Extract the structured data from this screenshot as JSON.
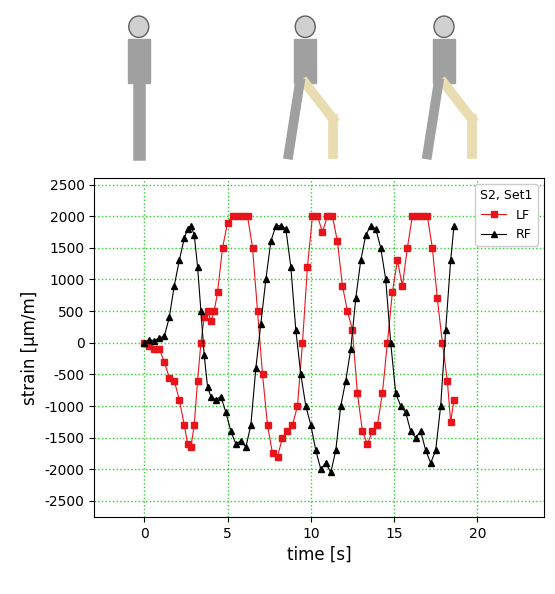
{
  "chart_data": {
    "type": "line",
    "x_label": "time [s]",
    "y_label": "strain [µm/m]",
    "legend_title": "S2, Set1",
    "legend": "upper right",
    "grid": true,
    "xlim": [
      -3,
      24
    ],
    "xticks": [
      0,
      5,
      10,
      15,
      20
    ],
    "ylim": [
      -2750,
      2600
    ],
    "yticks": [
      -2500,
      -2000,
      -1500,
      -1000,
      -500,
      0,
      500,
      1000,
      1500,
      2000,
      2500
    ],
    "series": [
      {
        "name": "LF",
        "color": "#e8141c",
        "marker": "square",
        "line_style": "solid",
        "x": [
          0,
          0.3,
          0.6,
          0.9,
          1.2,
          1.5,
          1.8,
          2.1,
          2.4,
          2.6,
          2.8,
          3.0,
          3.2,
          3.4,
          3.6,
          3.8,
          4.0,
          4.2,
          4.4,
          4.7,
          5.0,
          5.3,
          5.6,
          5.9,
          6.2,
          6.5,
          6.8,
          7.1,
          7.4,
          7.7,
          8.0,
          8.3,
          8.6,
          8.9,
          9.2,
          9.5,
          9.8,
          10.1,
          10.4,
          10.7,
          11.0,
          11.3,
          11.6,
          11.9,
          12.2,
          12.5,
          12.8,
          13.1,
          13.4,
          13.7,
          14.0,
          14.3,
          14.6,
          14.9,
          15.2,
          15.5,
          15.8,
          16.1,
          16.4,
          16.7,
          17.0,
          17.3,
          17.6,
          17.9,
          18.2,
          18.4,
          18.6
        ],
        "values": [
          0,
          -50,
          -100,
          -100,
          -300,
          -550,
          -600,
          -900,
          -1300,
          -1600,
          -1650,
          -1300,
          -600,
          0,
          400,
          500,
          350,
          500,
          800,
          1500,
          1900,
          2000,
          2000,
          2000,
          2000,
          1500,
          500,
          -500,
          -1300,
          -1750,
          -1800,
          -1500,
          -1400,
          -1300,
          -1000,
          0,
          1200,
          2000,
          2000,
          1750,
          2000,
          2000,
          1600,
          900,
          500,
          200,
          -800,
          -1400,
          -1600,
          -1400,
          -1300,
          -800,
          0,
          800,
          1300,
          900,
          1500,
          2000,
          2000,
          2000,
          2000,
          1500,
          700,
          0,
          -600,
          -1250,
          -900
        ]
      },
      {
        "name": "RF",
        "color": "#000000",
        "marker": "triangle",
        "line_style": "solid",
        "x": [
          0,
          0.3,
          0.6,
          0.9,
          1.2,
          1.5,
          1.8,
          2.1,
          2.4,
          2.6,
          2.8,
          3.0,
          3.2,
          3.4,
          3.6,
          3.8,
          4.0,
          4.3,
          4.6,
          4.9,
          5.2,
          5.5,
          5.8,
          6.1,
          6.4,
          6.7,
          7.0,
          7.3,
          7.6,
          7.9,
          8.2,
          8.5,
          8.8,
          9.1,
          9.4,
          9.7,
          10.0,
          10.3,
          10.6,
          10.9,
          11.2,
          11.5,
          11.8,
          12.1,
          12.4,
          12.7,
          13.0,
          13.3,
          13.6,
          13.9,
          14.2,
          14.5,
          14.8,
          15.1,
          15.4,
          15.7,
          16.0,
          16.3,
          16.6,
          16.9,
          17.2,
          17.5,
          17.8,
          18.1,
          18.4,
          18.6
        ],
        "values": [
          0,
          50,
          30,
          80,
          100,
          400,
          900,
          1300,
          1650,
          1800,
          1850,
          1700,
          1200,
          500,
          -200,
          -700,
          -850,
          -900,
          -850,
          -1100,
          -1400,
          -1600,
          -1550,
          -1650,
          -1300,
          -400,
          300,
          1000,
          1600,
          1850,
          1850,
          1800,
          1200,
          200,
          -500,
          -1000,
          -1300,
          -1700,
          -2000,
          -1900,
          -2050,
          -1700,
          -1000,
          -600,
          -100,
          700,
          1300,
          1700,
          1850,
          1800,
          1500,
          1000,
          0,
          -800,
          -1000,
          -1100,
          -1400,
          -1500,
          -1400,
          -1700,
          -1900,
          -1700,
          -1000,
          200,
          1300,
          1850
        ]
      }
    ]
  }
}
